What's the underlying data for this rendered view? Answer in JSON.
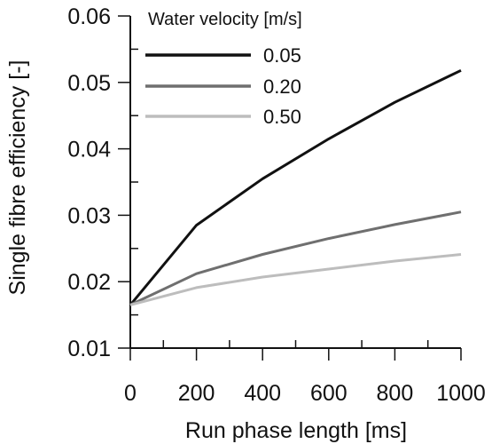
{
  "chart_data": {
    "type": "line",
    "title": "",
    "xlabel": "Run phase length [ms]",
    "ylabel": "Single fibre efficiency [-]",
    "xlim": [
      0,
      1000
    ],
    "ylim": [
      0.01,
      0.06
    ],
    "x_ticks": [
      0,
      200,
      400,
      600,
      800,
      1000
    ],
    "x_tick_labels": [
      "0",
      "200",
      "400",
      "600",
      "800",
      "1000"
    ],
    "x_minor_step": 100,
    "y_ticks": [
      0.01,
      0.02,
      0.03,
      0.04,
      0.05,
      0.06
    ],
    "y_tick_labels": [
      "0.01",
      "0.02",
      "0.03",
      "0.04",
      "0.05",
      "0.06"
    ],
    "y_minor_step": 0.005,
    "grid": false,
    "legend": {
      "title": "Water velocity [m/s]",
      "placement": "top-left"
    },
    "x": [
      0,
      200,
      400,
      600,
      800,
      1000
    ],
    "series": [
      {
        "name": "0.05",
        "color": "#111111",
        "values": [
          0.0165,
          0.0285,
          0.0355,
          0.0415,
          0.047,
          0.0518
        ]
      },
      {
        "name": "0.20",
        "color": "#6f6f6f",
        "values": [
          0.0165,
          0.0212,
          0.0241,
          0.0265,
          0.0286,
          0.0305
        ]
      },
      {
        "name": "0.50",
        "color": "#bdbdbd",
        "values": [
          0.0165,
          0.0191,
          0.0207,
          0.0219,
          0.0231,
          0.0241
        ]
      }
    ]
  }
}
